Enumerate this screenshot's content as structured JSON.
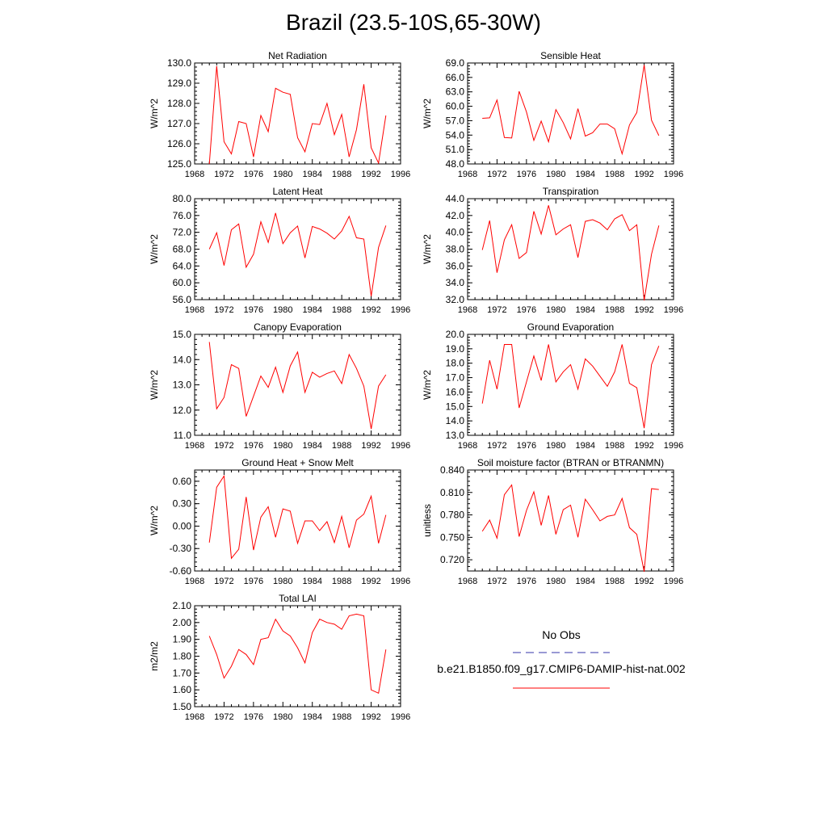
{
  "page": {
    "title": "Brazil (23.5-10S,65-30W)"
  },
  "chart_data": [
    {
      "type": "line",
      "title": "Net Radiation",
      "ylabel": "W/m^2",
      "xlim": [
        1968,
        1996
      ],
      "ylim": [
        125.0,
        130.0
      ],
      "xticks": [
        "1968",
        "1972",
        "1976",
        "1980",
        "1984",
        "1988",
        "1992",
        "1996"
      ],
      "yticks": [
        "125.0",
        "126.0",
        "127.0",
        "128.0",
        "129.0",
        "130.0"
      ],
      "series": [
        {
          "color": "#ff0000",
          "x": [
            1970,
            1971,
            1972,
            1973,
            1974,
            1975,
            1976,
            1977,
            1978,
            1979,
            1980,
            1981,
            1982,
            1983,
            1984,
            1985,
            1986,
            1987,
            1988,
            1989,
            1990,
            1991,
            1992,
            1993,
            1994
          ],
          "values": [
            125.0,
            129.85,
            126.1,
            125.5,
            127.1,
            127.0,
            125.35,
            127.4,
            126.6,
            128.75,
            128.55,
            128.45,
            126.3,
            125.6,
            127.0,
            126.95,
            128.0,
            126.45,
            127.45,
            125.35,
            126.7,
            128.95,
            125.8,
            125.05,
            127.4
          ]
        }
      ]
    },
    {
      "type": "line",
      "title": "Sensible Heat",
      "ylabel": "W/m^2",
      "xlim": [
        1968,
        1996
      ],
      "ylim": [
        48.0,
        69.0
      ],
      "xticks": [
        "1968",
        "1972",
        "1976",
        "1980",
        "1984",
        "1988",
        "1992",
        "1996"
      ],
      "yticks": [
        "48.0",
        "51.0",
        "54.0",
        "57.0",
        "60.0",
        "63.0",
        "66.0",
        "69.0"
      ],
      "series": [
        {
          "color": "#ff0000",
          "x": [
            1970,
            1971,
            1972,
            1973,
            1974,
            1975,
            1976,
            1977,
            1978,
            1979,
            1980,
            1981,
            1982,
            1983,
            1984,
            1985,
            1986,
            1987,
            1988,
            1989,
            1990,
            1991,
            1992,
            1993,
            1994
          ],
          "values": [
            57.5,
            57.6,
            61.3,
            53.5,
            53.4,
            63.1,
            58.8,
            52.9,
            56.9,
            52.6,
            59.3,
            56.6,
            53.2,
            59.5,
            53.8,
            54.5,
            56.3,
            56.3,
            55.3,
            50.1,
            56.1,
            58.7,
            68.6,
            57.1,
            53.9
          ]
        }
      ]
    },
    {
      "type": "line",
      "title": "Latent Heat",
      "ylabel": "W/m^2",
      "xlim": [
        1968,
        1996
      ],
      "ylim": [
        56.0,
        80.0
      ],
      "xticks": [
        "1968",
        "1972",
        "1976",
        "1980",
        "1984",
        "1988",
        "1992",
        "1996"
      ],
      "yticks": [
        "56.0",
        "60.0",
        "64.0",
        "68.0",
        "72.0",
        "76.0",
        "80.0"
      ],
      "series": [
        {
          "color": "#ff0000",
          "x": [
            1970,
            1971,
            1972,
            1973,
            1974,
            1975,
            1976,
            1977,
            1978,
            1979,
            1980,
            1981,
            1982,
            1983,
            1984,
            1985,
            1986,
            1987,
            1988,
            1989,
            1990,
            1991,
            1992,
            1993,
            1994
          ],
          "values": [
            68.0,
            71.9,
            64.1,
            72.6,
            74.0,
            63.7,
            66.8,
            74.5,
            69.6,
            76.6,
            69.3,
            71.9,
            73.5,
            65.9,
            73.4,
            72.8,
            71.8,
            70.4,
            72.3,
            75.8,
            70.7,
            70.4,
            56.8,
            68.4,
            73.6
          ]
        }
      ]
    },
    {
      "type": "line",
      "title": "Transpiration",
      "ylabel": "W/m^2",
      "xlim": [
        1968,
        1996
      ],
      "ylim": [
        32.0,
        44.0
      ],
      "xticks": [
        "1968",
        "1972",
        "1976",
        "1980",
        "1984",
        "1988",
        "1992",
        "1996"
      ],
      "yticks": [
        "32.0",
        "34.0",
        "36.0",
        "38.0",
        "40.0",
        "42.0",
        "44.0"
      ],
      "series": [
        {
          "color": "#ff0000",
          "x": [
            1970,
            1971,
            1972,
            1973,
            1974,
            1975,
            1976,
            1977,
            1978,
            1979,
            1980,
            1981,
            1982,
            1983,
            1984,
            1985,
            1986,
            1987,
            1988,
            1989,
            1990,
            1991,
            1992,
            1993,
            1994
          ],
          "values": [
            37.9,
            41.4,
            35.2,
            39.1,
            40.9,
            36.9,
            37.6,
            42.5,
            39.8,
            43.2,
            39.7,
            40.4,
            40.9,
            37.0,
            41.3,
            41.5,
            41.1,
            40.3,
            41.6,
            42.1,
            40.2,
            40.9,
            31.9,
            37.4,
            40.8
          ]
        }
      ]
    },
    {
      "type": "line",
      "title": "Canopy Evaporation",
      "ylabel": "W/m^2",
      "xlim": [
        1968,
        1996
      ],
      "ylim": [
        11.0,
        15.0
      ],
      "xticks": [
        "1968",
        "1972",
        "1976",
        "1980",
        "1984",
        "1988",
        "1992",
        "1996"
      ],
      "yticks": [
        "11.0",
        "12.0",
        "13.0",
        "14.0",
        "15.0"
      ],
      "series": [
        {
          "color": "#ff0000",
          "x": [
            1970,
            1971,
            1972,
            1973,
            1974,
            1975,
            1976,
            1977,
            1978,
            1979,
            1980,
            1981,
            1982,
            1983,
            1984,
            1985,
            1986,
            1987,
            1988,
            1989,
            1990,
            1991,
            1992,
            1993,
            1994
          ],
          "values": [
            14.7,
            12.05,
            12.5,
            13.8,
            13.65,
            11.75,
            12.55,
            13.35,
            12.9,
            13.7,
            12.7,
            13.75,
            14.3,
            12.7,
            13.5,
            13.3,
            13.45,
            13.55,
            13.05,
            14.2,
            13.65,
            12.95,
            11.25,
            12.95,
            13.4
          ]
        }
      ]
    },
    {
      "type": "line",
      "title": "Ground Evaporation",
      "ylabel": "W/m^2",
      "xlim": [
        1968,
        1996
      ],
      "ylim": [
        13.0,
        20.0
      ],
      "xticks": [
        "1968",
        "1972",
        "1976",
        "1980",
        "1984",
        "1988",
        "1992",
        "1996"
      ],
      "yticks": [
        "13.0",
        "14.0",
        "15.0",
        "16.0",
        "17.0",
        "18.0",
        "19.0",
        "20.0"
      ],
      "series": [
        {
          "color": "#ff0000",
          "x": [
            1970,
            1971,
            1972,
            1973,
            1974,
            1975,
            1976,
            1977,
            1978,
            1979,
            1980,
            1981,
            1982,
            1983,
            1984,
            1985,
            1986,
            1987,
            1988,
            1989,
            1990,
            1991,
            1992,
            1993,
            1994
          ],
          "values": [
            15.2,
            18.2,
            16.2,
            19.3,
            19.3,
            14.9,
            16.7,
            18.5,
            16.8,
            19.3,
            16.7,
            17.4,
            17.9,
            16.2,
            18.3,
            17.8,
            17.1,
            16.4,
            17.4,
            19.3,
            16.6,
            16.3,
            13.5,
            17.9,
            19.2
          ]
        }
      ]
    },
    {
      "type": "line",
      "title": "Ground Heat + Snow Melt",
      "ylabel": "W/m^2",
      "xlim": [
        1968,
        1996
      ],
      "ylim": [
        -0.6,
        0.75
      ],
      "xticks": [
        "1968",
        "1972",
        "1976",
        "1980",
        "1984",
        "1988",
        "1992",
        "1996"
      ],
      "yticks": [
        "-0.60",
        "-0.30",
        "0.00",
        "0.30",
        "0.60"
      ],
      "ytick_values": [
        -0.6,
        -0.3,
        0.0,
        0.3,
        0.6
      ],
      "series": [
        {
          "color": "#ff0000",
          "x": [
            1970,
            1971,
            1972,
            1973,
            1974,
            1975,
            1976,
            1977,
            1978,
            1979,
            1980,
            1981,
            1982,
            1983,
            1984,
            1985,
            1986,
            1987,
            1988,
            1989,
            1990,
            1991,
            1992,
            1993,
            1994
          ],
          "values": [
            -0.22,
            0.52,
            0.67,
            -0.43,
            -0.31,
            0.39,
            -0.32,
            0.12,
            0.26,
            -0.15,
            0.23,
            0.2,
            -0.23,
            0.07,
            0.07,
            -0.06,
            0.06,
            -0.22,
            0.13,
            -0.29,
            0.08,
            0.16,
            0.4,
            -0.23,
            0.15
          ]
        }
      ]
    },
    {
      "type": "line",
      "title": "Soil moisture factor (BTRAN or BTRANMN)",
      "ylabel": "unitless",
      "xlim": [
        1968,
        1996
      ],
      "ylim": [
        0.705,
        0.84
      ],
      "xticks": [
        "1968",
        "1972",
        "1976",
        "1980",
        "1984",
        "1988",
        "1992",
        "1996"
      ],
      "yticks": [
        "0.720",
        "0.750",
        "0.780",
        "0.810",
        "0.840"
      ],
      "ytick_values": [
        0.72,
        0.75,
        0.78,
        0.81,
        0.84
      ],
      "series": [
        {
          "color": "#ff0000",
          "x": [
            1970,
            1971,
            1972,
            1973,
            1974,
            1975,
            1976,
            1977,
            1978,
            1979,
            1980,
            1981,
            1982,
            1983,
            1984,
            1985,
            1986,
            1987,
            1988,
            1989,
            1990,
            1991,
            1992,
            1993,
            1994
          ],
          "values": [
            0.758,
            0.773,
            0.749,
            0.807,
            0.82,
            0.751,
            0.786,
            0.811,
            0.766,
            0.806,
            0.754,
            0.787,
            0.793,
            0.75,
            0.801,
            0.787,
            0.772,
            0.778,
            0.78,
            0.802,
            0.763,
            0.754,
            0.704,
            0.815,
            0.814
          ]
        }
      ]
    },
    {
      "type": "line",
      "title": "Total LAI",
      "ylabel": "m2/m2",
      "xlim": [
        1968,
        1996
      ],
      "ylim": [
        1.5,
        2.1
      ],
      "xticks": [
        "1968",
        "1972",
        "1976",
        "1980",
        "1984",
        "1988",
        "1992",
        "1996"
      ],
      "yticks": [
        "1.50",
        "1.60",
        "1.70",
        "1.80",
        "1.90",
        "2.00",
        "2.10"
      ],
      "ytick_values": [
        1.5,
        1.6,
        1.7,
        1.8,
        1.9,
        2.0,
        2.1
      ],
      "series": [
        {
          "color": "#ff0000",
          "x": [
            1970,
            1971,
            1972,
            1973,
            1974,
            1975,
            1976,
            1977,
            1978,
            1979,
            1980,
            1981,
            1982,
            1983,
            1984,
            1985,
            1986,
            1987,
            1988,
            1989,
            1990,
            1991,
            1992,
            1993,
            1994
          ],
          "values": [
            1.92,
            1.81,
            1.67,
            1.74,
            1.84,
            1.81,
            1.75,
            1.9,
            1.91,
            2.02,
            1.95,
            1.92,
            1.85,
            1.76,
            1.94,
            2.02,
            2.0,
            1.99,
            1.96,
            2.04,
            2.05,
            2.04,
            1.6,
            1.58,
            1.84
          ]
        }
      ]
    }
  ],
  "legend": {
    "items": [
      {
        "label": "No Obs",
        "color": "#3333aa",
        "style": "dashed"
      },
      {
        "label": "b.e21.B1850.f09_g17.CMIP6-DAMIP-hist-nat.002",
        "color": "#ff0000",
        "style": "solid"
      }
    ]
  }
}
